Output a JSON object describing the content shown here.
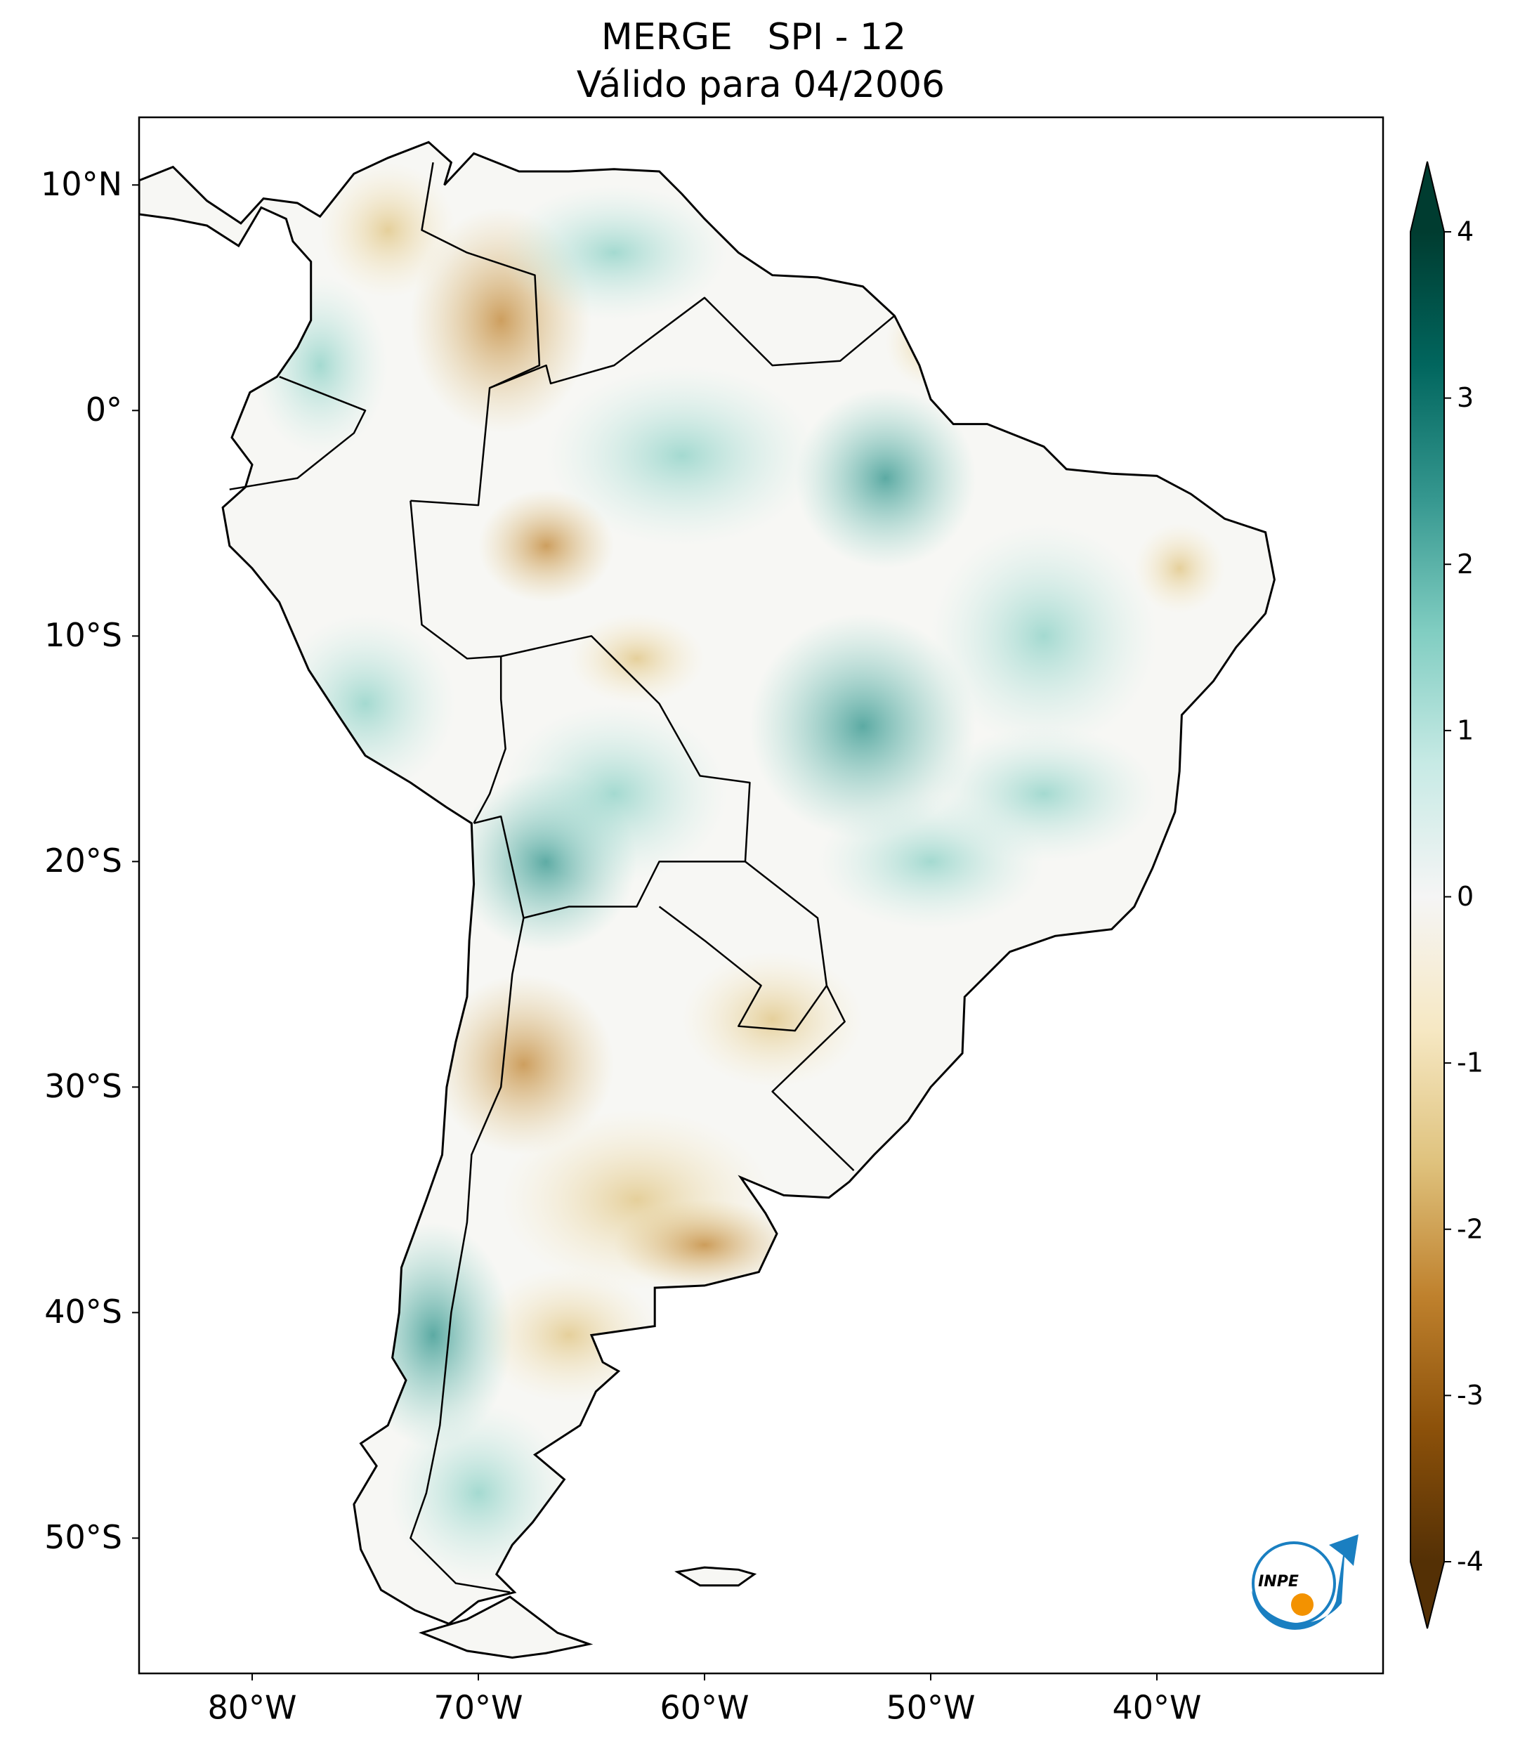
{
  "chart_data": {
    "type": "map",
    "title": "MERGE   SPI - 12",
    "subtitle": "Válido para 04/2006",
    "xlim": [
      -85,
      -30
    ],
    "xticks": [
      {
        "value": -80,
        "label": "80°W"
      },
      {
        "value": -70,
        "label": "70°W"
      },
      {
        "value": -60,
        "label": "60°W"
      },
      {
        "value": -50,
        "label": "50°W"
      },
      {
        "value": -40,
        "label": "40°W"
      }
    ],
    "ylim": [
      -56,
      13
    ],
    "yticks": [
      {
        "value": 10,
        "label": "10°N"
      },
      {
        "value": 0,
        "label": "0°"
      },
      {
        "value": -10,
        "label": "10°S"
      },
      {
        "value": -20,
        "label": "20°S"
      },
      {
        "value": -30,
        "label": "30°S"
      },
      {
        "value": -40,
        "label": "40°S"
      },
      {
        "value": -50,
        "label": "50°S"
      }
    ],
    "colorbar": {
      "lim": [
        -4,
        4
      ],
      "ticks": [
        -4,
        -3,
        -2,
        -1,
        0,
        1,
        2,
        3,
        4
      ],
      "extend": "both",
      "colormap": "BrBG"
    },
    "logo": "INPE"
  }
}
